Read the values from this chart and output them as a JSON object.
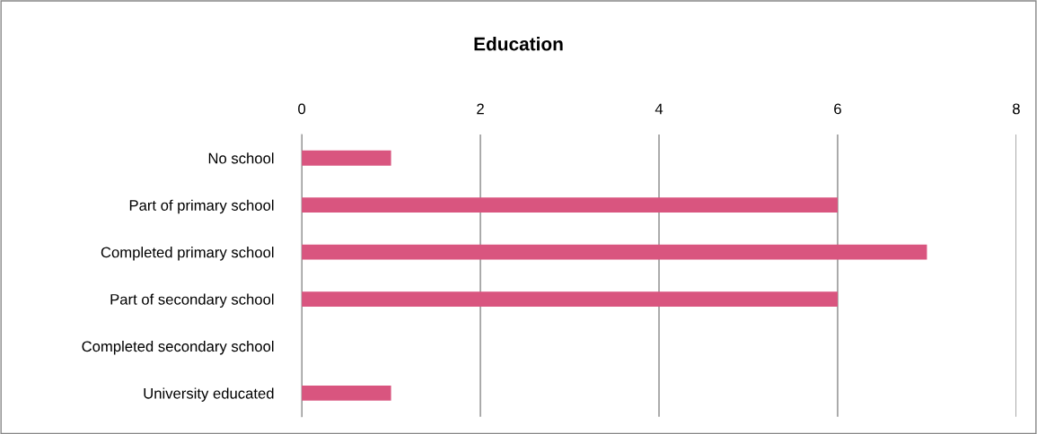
{
  "chart_data": {
    "type": "bar",
    "orientation": "horizontal",
    "title": "Education",
    "categories": [
      "No school",
      "Part of primary school",
      "Completed primary school",
      "Part of secondary school",
      "Completed secondary school",
      "University educated"
    ],
    "values": [
      1,
      6,
      7,
      6,
      0,
      1
    ],
    "color": "#d9557f",
    "xlim": [
      0,
      8
    ],
    "xticks": [
      0,
      2,
      4,
      6,
      8
    ],
    "grid": "x"
  }
}
